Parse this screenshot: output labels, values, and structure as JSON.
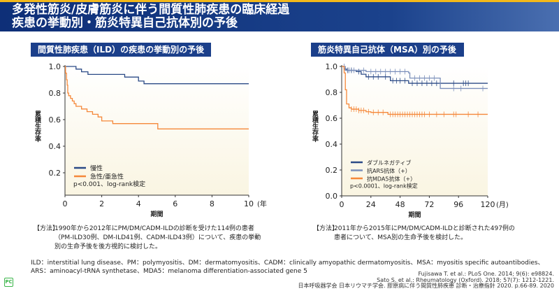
{
  "header": {
    "title_line1": "多発性筋炎/皮膚筋炎に伴う間質性肺疾患の臨床経過",
    "title_line2": "疾患の挙動別・筋炎特異自己抗体別の予後"
  },
  "colors": {
    "navy": "#2b4a86",
    "ars": "#7b8fba",
    "orange": "#f5883a",
    "plot_bg_bottom": "#faf5e2",
    "header": "#1b3f8a",
    "accent": "#f3b81a"
  },
  "chart_data": [
    {
      "type": "line",
      "step": true,
      "title": "間質性肺疾患（ILD）の疾患の挙動別の予後",
      "xlabel": "期間",
      "xunit": "(年",
      "ylabel": "累積生存率",
      "xlim": [
        0,
        10
      ],
      "ylim": [
        0,
        1.0
      ],
      "xticks": [
        "0",
        "2",
        "4",
        "6",
        "8",
        "10"
      ],
      "xtick_values": [
        0,
        2,
        4,
        6,
        8,
        10
      ],
      "yticks": [
        "0.2",
        "0.4",
        "0.6",
        "0.8",
        "1.0"
      ],
      "ytick_values": [
        0.2,
        0.4,
        0.6,
        0.8,
        1.0
      ],
      "legend_placement": "bottom-left",
      "annotation": "p<0.001、log-rank検定",
      "series": [
        {
          "name": "慢性",
          "color": "#2b4a86",
          "points": [
            [
              0,
              1
            ],
            [
              0.6,
              0.98
            ],
            [
              0.9,
              0.96
            ],
            [
              1.25,
              0.94
            ],
            [
              3.25,
              0.92
            ],
            [
              4.0,
              0.89
            ],
            [
              4.3,
              0.87
            ],
            [
              10,
              0.87
            ]
          ],
          "censor": []
        },
        {
          "name": "急性/亜急性",
          "color": "#f5883a",
          "points": [
            [
              0,
              1
            ],
            [
              0.03,
              0.95
            ],
            [
              0.08,
              0.9
            ],
            [
              0.12,
              0.86
            ],
            [
              0.15,
              0.8
            ],
            [
              0.2,
              0.78
            ],
            [
              0.3,
              0.76
            ],
            [
              0.4,
              0.74
            ],
            [
              0.5,
              0.72
            ],
            [
              0.6,
              0.7
            ],
            [
              0.9,
              0.68
            ],
            [
              1.2,
              0.66
            ],
            [
              1.5,
              0.64
            ],
            [
              1.8,
              0.62
            ],
            [
              2.0,
              0.59
            ],
            [
              2.6,
              0.57
            ],
            [
              5.05,
              0.53
            ],
            [
              10,
              0.53
            ]
          ],
          "censor": []
        }
      ]
    },
    {
      "type": "line",
      "step": true,
      "title": "筋炎特異自己抗体（MSA）別の予後",
      "xlabel": "期間",
      "xunit": "(月)",
      "ylabel": "累積生存率",
      "xlim": [
        0,
        120
      ],
      "ylim": [
        0,
        1.0
      ],
      "xticks": [
        "0",
        "24",
        "48",
        "72",
        "96",
        "120"
      ],
      "xtick_values": [
        0,
        24,
        48,
        72,
        96,
        120
      ],
      "yticks": [
        "0.0",
        "0.2",
        "0.4",
        "0.6",
        "0.8",
        "1.0"
      ],
      "ytick_values": [
        0,
        0.2,
        0.4,
        0.6,
        0.8,
        1.0
      ],
      "legend_placement": "bottom-left",
      "annotation": "p<0.0001、log-rank検定",
      "series": [
        {
          "name": "ダブルネガティブ",
          "color": "#2b4a86",
          "points": [
            [
              0,
              1
            ],
            [
              2,
              0.98
            ],
            [
              4,
              0.97
            ],
            [
              12,
              0.96
            ],
            [
              16,
              0.94
            ],
            [
              20,
              0.92
            ],
            [
              40,
              0.89
            ],
            [
              55,
              0.87
            ],
            [
              120,
              0.87
            ]
          ],
          "censor": [
            5,
            8,
            14,
            22,
            26,
            30,
            36,
            42,
            45,
            48,
            52,
            58,
            62,
            66,
            70,
            74,
            78,
            92,
            100,
            102,
            104
          ]
        },
        {
          "name": "抗ARS抗体（+）",
          "color": "#7b8fba",
          "points": [
            [
              0,
              1
            ],
            [
              3,
              0.97
            ],
            [
              20,
              0.96
            ],
            [
              55,
              0.95
            ],
            [
              56,
              0.91
            ],
            [
              80,
              0.91
            ],
            [
              81,
              0.83
            ],
            [
              120,
              0.83
            ]
          ],
          "censor": [
            2,
            6,
            10,
            18,
            24,
            28,
            32,
            36,
            40,
            44,
            48,
            52,
            60,
            64,
            68,
            72,
            76,
            92,
            98,
            116
          ]
        },
        {
          "name": "抗MDA5抗体（+）",
          "color": "#f5883a",
          "points": [
            [
              0,
              1
            ],
            [
              2,
              0.95
            ],
            [
              3,
              0.82
            ],
            [
              4,
              0.71
            ],
            [
              6,
              0.68
            ],
            [
              8,
              0.67
            ],
            [
              14,
              0.66
            ],
            [
              20,
              0.65
            ],
            [
              24,
              0.645
            ],
            [
              38,
              0.63
            ],
            [
              120,
              0.63
            ]
          ],
          "censor": [
            8,
            10,
            12,
            14,
            16,
            18,
            22,
            26,
            30,
            34,
            40,
            42,
            44,
            46,
            48,
            50,
            52,
            54,
            56,
            58,
            60,
            62,
            64,
            66,
            68,
            72,
            78,
            84,
            92,
            94,
            104,
            112
          ]
        }
      ]
    }
  ],
  "methods": {
    "left_label": "【方法】",
    "left_text": [
      "1990年から2012年にPM/DM/CADM-ILDの診断を受けた114例の患者",
      "（PM-ILD30例、DM-ILD41例、CADM-ILD43例）について、疾患の挙動",
      "別の生命予後を後方視的に検討した。"
    ],
    "right_label": "【方法】",
    "right_text": [
      "2011年から2015年にPM/DM/CADM-ILDと診断された497例の",
      "患者について、MSA別の生命予後を検討した。"
    ]
  },
  "abbreviations": [
    "ILD：interstitial lung disease、PM：polymyositis、DM：dermatomyositis、CADM：clinically amyopathic dermatomyositis、MSA：myositis specific autoantibodies、",
    "ARS：aminoacyl-tRNA synthetase、MDA5：melanoma differentiation-associated gene 5"
  ],
  "references": [
    "Fujisawa T. et al.: PLoS One. 2014; 9(6): e98824.",
    "Sato S. et al.: Rheumatology (Oxford). 2018; 57(7): 1212-1221.",
    "日本呼吸器学会 日本リウマチ学会. 膠原病に伴う間質性肺疾患 診断・治療指針 2020. p.66-89. 2020"
  ],
  "logo": "PC"
}
